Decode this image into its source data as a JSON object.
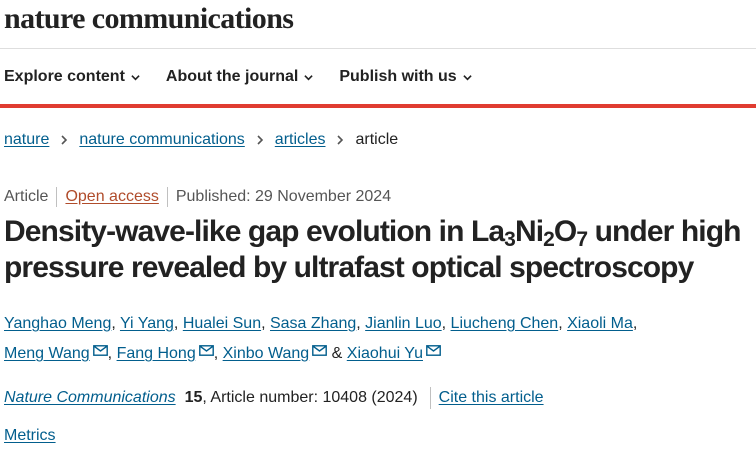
{
  "site": {
    "logo": "nature communications"
  },
  "nav": [
    {
      "label": "Explore content"
    },
    {
      "label": "About the journal"
    },
    {
      "label": "Publish with us"
    }
  ],
  "breadcrumb": {
    "items": [
      "nature",
      "nature communications",
      "articles"
    ],
    "current": "article"
  },
  "article_meta": {
    "type": "Article",
    "access": "Open access",
    "published": "Published: 29 November 2024"
  },
  "title": {
    "part1": "Density-wave-like gap evolution in La",
    "sub1": "3",
    "part2": "Ni",
    "sub2": "2",
    "part3": "O",
    "sub3": "7",
    "part4": " under high pressure revealed by ultrafast optical spectroscopy"
  },
  "authors": [
    {
      "name": "Yanghao Meng",
      "email": false
    },
    {
      "name": "Yi Yang",
      "email": false
    },
    {
      "name": "Hualei Sun",
      "email": false
    },
    {
      "name": "Sasa Zhang",
      "email": false
    },
    {
      "name": "Jianlin Luo",
      "email": false
    },
    {
      "name": "Liucheng Chen",
      "email": false
    },
    {
      "name": "Xiaoli Ma",
      "email": false
    },
    {
      "name": "Meng Wang",
      "email": true
    },
    {
      "name": "Fang Hong",
      "email": true
    },
    {
      "name": "Xinbo Wang",
      "email": true
    },
    {
      "name": "Xiaohui Yu",
      "email": true
    }
  ],
  "citation": {
    "journal": "Nature Communications",
    "volume": "15",
    "article_number": ", Article number: 10408 (2024)",
    "cite_link": "Cite this article"
  },
  "metrics_link": "Metrics",
  "colors": {
    "link": "#025e8d",
    "accent_bar": "#e03c31",
    "open_access": "#b04c2b"
  },
  "icons": {
    "nav_dropdown": "chevron-down-icon",
    "breadcrumb_separator": "chevron-right-icon",
    "author_contact": "envelope-icon"
  }
}
